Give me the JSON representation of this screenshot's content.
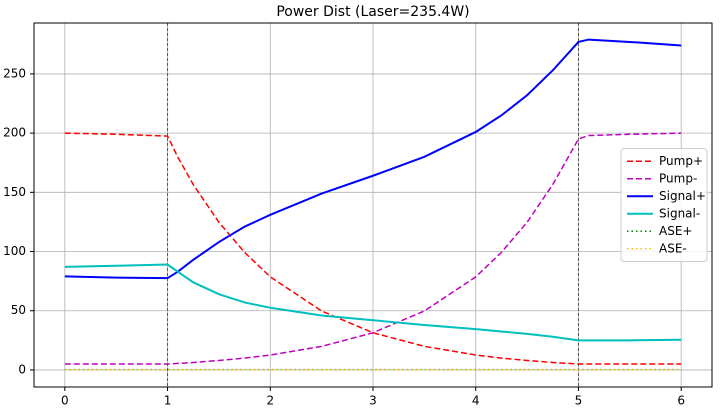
{
  "chart_data": {
    "type": "line",
    "title": "Power Dist (Laser=235.4W)",
    "x": [
      0,
      0.5,
      1,
      1.1,
      1.25,
      1.5,
      1.75,
      2,
      2.5,
      3,
      3.5,
      4,
      4.25,
      4.5,
      4.75,
      5,
      5.1,
      5.5,
      6
    ],
    "series": [
      {
        "name": "Pump+",
        "color": "#ff0000",
        "linestyle": "dashed",
        "values": [
          200,
          199,
          197.5,
          179.7,
          156.6,
          124.7,
          99.3,
          78.6,
          49.8,
          31.4,
          19.9,
          12.6,
          10,
          8,
          6.3,
          5,
          5,
          5,
          5
        ]
      },
      {
        "name": "Pump-",
        "color": "#bf00bf",
        "linestyle": "dashed",
        "values": [
          5,
          5,
          5,
          5.5,
          6.3,
          8,
          10,
          12.6,
          19.9,
          31.4,
          49.8,
          78.6,
          99.3,
          124.7,
          156.6,
          195,
          198,
          199,
          200
        ]
      },
      {
        "name": "Signal+",
        "color": "#0000ff",
        "linestyle": "solid",
        "values": [
          79,
          78,
          77.5,
          83,
          93,
          108,
          121,
          131,
          149,
          164,
          180,
          201,
          215,
          232,
          253,
          277,
          279,
          277,
          274
        ]
      },
      {
        "name": "Signal-",
        "color": "#00bfbf",
        "linestyle": "solid",
        "values": [
          87,
          88,
          89,
          83,
          74,
          64,
          57,
          52.5,
          46,
          42,
          38,
          34.5,
          32.5,
          30.5,
          28,
          25,
          25,
          25,
          25.5
        ]
      },
      {
        "name": "ASE+",
        "color": "#008000",
        "linestyle": "dotted",
        "values": [
          0.3,
          0.3,
          0.3,
          0.3,
          0.3,
          0.3,
          0.3,
          0.3,
          0.3,
          0.3,
          0.3,
          0.3,
          0.3,
          0.3,
          0.3,
          0.3,
          0.3,
          0.3,
          0.3
        ]
      },
      {
        "name": "ASE-",
        "color": "#ffbf00",
        "linestyle": "dotted",
        "values": [
          0.2,
          0.2,
          0.2,
          0.2,
          0.2,
          0.2,
          0.2,
          0.2,
          0.2,
          0.2,
          0.2,
          0.2,
          0.2,
          0.2,
          0.2,
          0.2,
          0.2,
          0.2,
          0.2
        ]
      }
    ],
    "vlines": [
      1,
      5
    ],
    "xlim": [
      -0.3,
      6.3
    ],
    "xticks": [
      0,
      1,
      2,
      3,
      4,
      5,
      6
    ],
    "ylim": [
      -14.4,
      293
    ],
    "yticks": [
      0,
      50,
      100,
      150,
      200,
      250
    ],
    "grid": true,
    "legend": "center right"
  }
}
